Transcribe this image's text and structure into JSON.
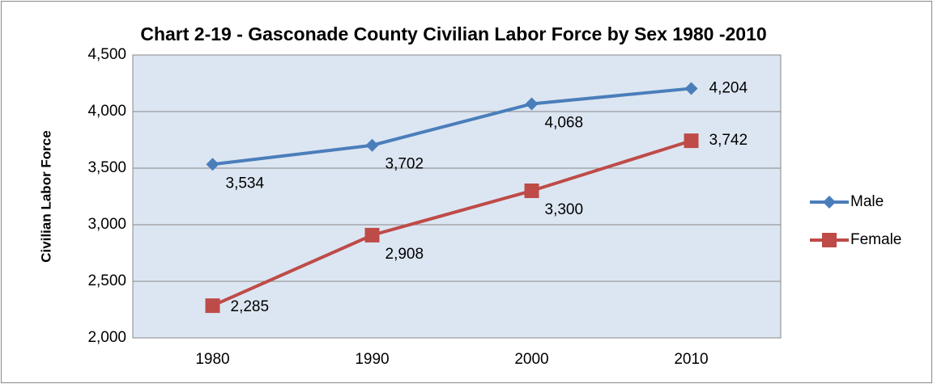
{
  "chart_data": {
    "type": "line",
    "title": "Chart 2-19 - Gasconade County Civilian Labor Force by Sex 1980 -2010",
    "y_label": "Civilian Labor Force",
    "categories": [
      "1980",
      "1990",
      "2000",
      "2010"
    ],
    "series": [
      {
        "name": "Male",
        "color": "#4a7ebb",
        "marker": "diamond",
        "values": [
          3534,
          3702,
          4068,
          4204
        ],
        "value_labels": [
          "3,534",
          "3,702",
          "4,068",
          "4,204"
        ]
      },
      {
        "name": "Female",
        "color": "#be4b48",
        "marker": "square",
        "values": [
          2285,
          2908,
          3300,
          3742
        ],
        "value_labels": [
          "2,285",
          "2,908",
          "3,300",
          "3,742"
        ]
      }
    ],
    "ylim": [
      2000,
      4500
    ],
    "yticks": [
      {
        "value": 2000,
        "label": "2,000"
      },
      {
        "value": 2500,
        "label": "2,500"
      },
      {
        "value": 3000,
        "label": "3,000"
      },
      {
        "value": 3500,
        "label": "3,500"
      },
      {
        "value": 4000,
        "label": "4,000"
      },
      {
        "value": 4500,
        "label": "4,500"
      }
    ],
    "grid": true,
    "legend": "right"
  }
}
